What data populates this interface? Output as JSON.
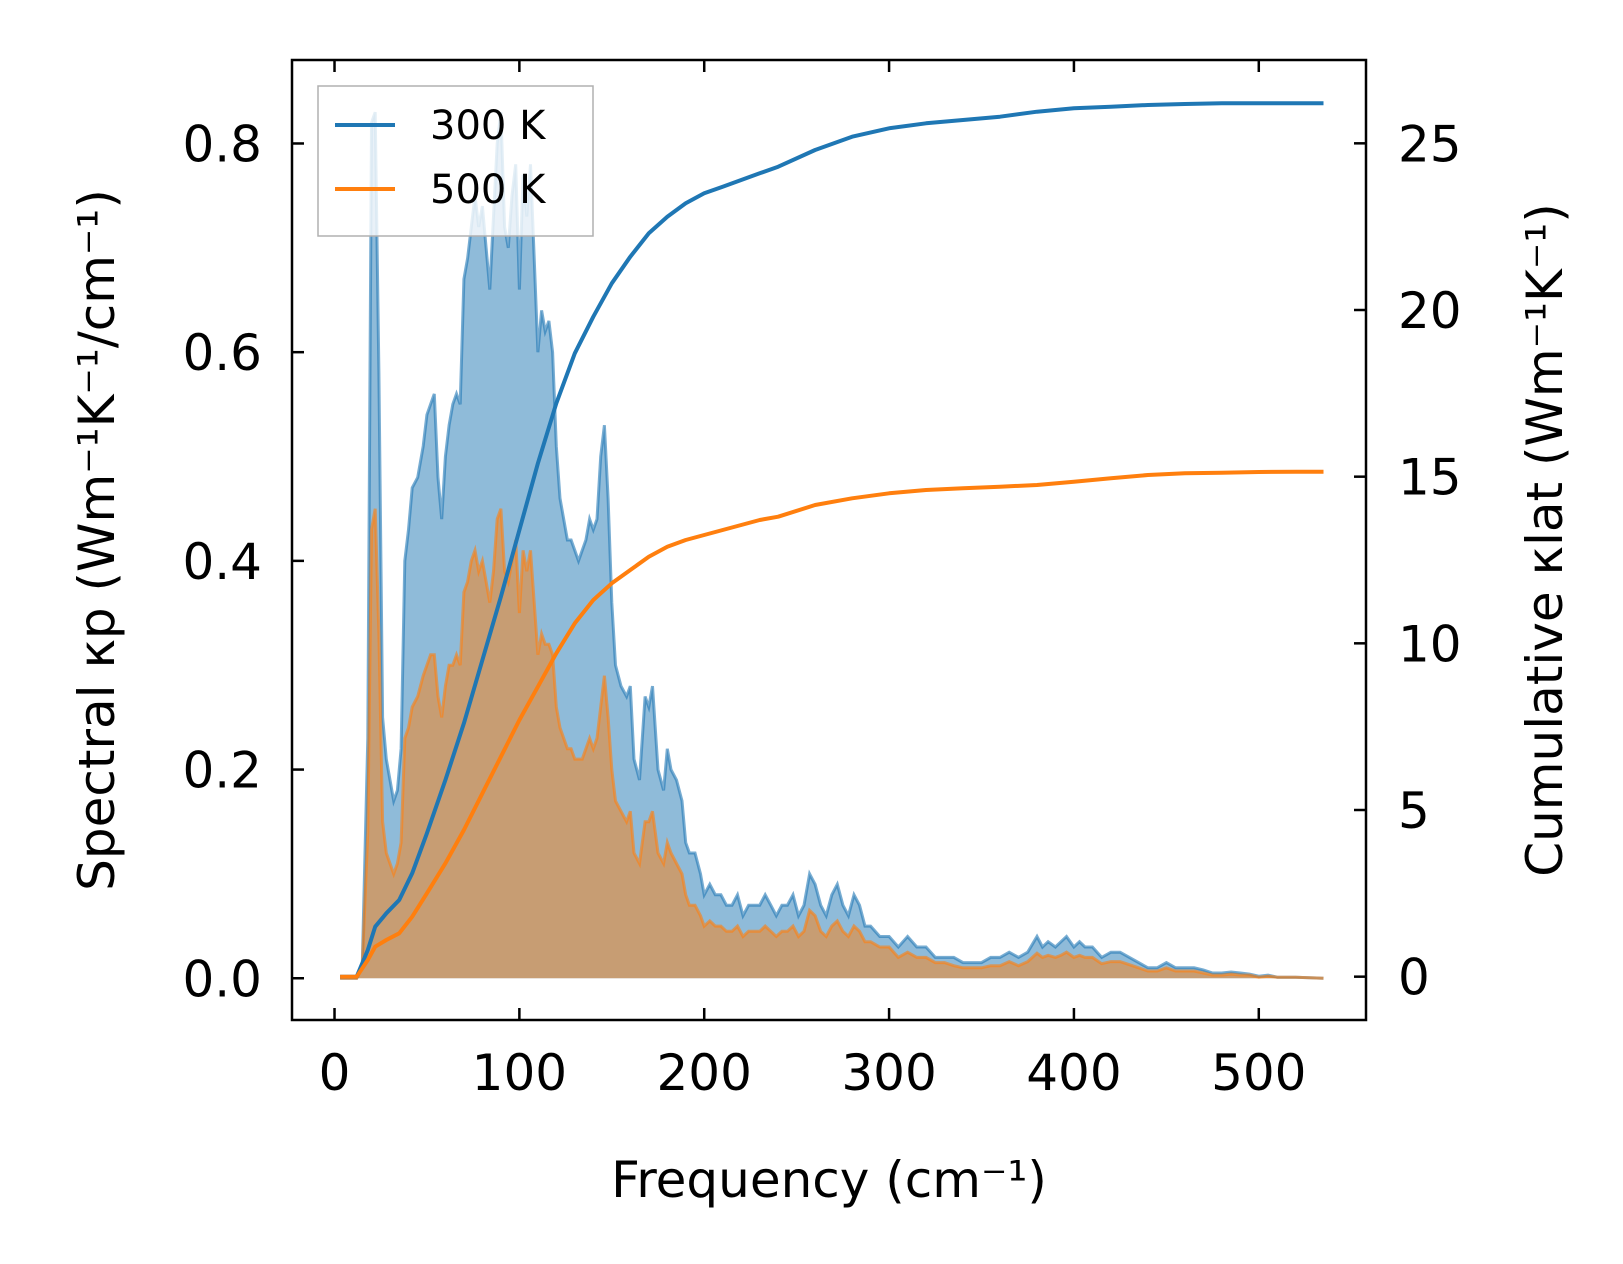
{
  "chart_data": {
    "type": "area",
    "xlabel": "Frequency (cm⁻¹)",
    "ylabel_left": "Spectral κp (Wm⁻¹K⁻¹/cm⁻¹)",
    "ylabel_right": "Cumulative κlat (Wm⁻¹K⁻¹)",
    "xlim": [
      -23,
      558
    ],
    "ylim_left": [
      -0.04,
      0.88
    ],
    "ylim_right": [
      -1.3,
      27.5
    ],
    "x_ticks": [
      0,
      100,
      200,
      300,
      400,
      500
    ],
    "y_ticks_left": [
      "0.0",
      "0.2",
      "0.4",
      "0.6",
      "0.8"
    ],
    "y_ticks_left_values": [
      0,
      0.2,
      0.4,
      0.6,
      0.8
    ],
    "y_ticks_right": [
      0,
      5,
      10,
      15,
      20,
      25
    ],
    "grid": false,
    "legend_position": "top-left",
    "series": [
      {
        "name": "300 K",
        "color": "#1f77b4",
        "fill_color": "#1f77b4",
        "spectral": {
          "x": [
            3,
            8,
            12,
            15,
            18,
            20,
            22,
            24,
            26,
            28,
            30,
            32,
            34,
            36,
            38,
            40,
            42,
            45,
            48,
            50,
            52,
            54,
            56,
            58,
            60,
            62,
            64,
            66,
            68,
            70,
            72,
            74,
            76,
            78,
            80,
            82,
            84,
            86,
            88,
            90,
            92,
            94,
            96,
            98,
            100,
            102,
            104,
            106,
            108,
            110,
            112,
            114,
            116,
            118,
            120,
            122,
            124,
            126,
            128,
            130,
            132,
            134,
            136,
            138,
            140,
            142,
            144,
            146,
            148,
            150,
            152,
            155,
            158,
            160,
            162,
            165,
            168,
            170,
            172,
            175,
            178,
            180,
            182,
            185,
            188,
            190,
            192,
            195,
            198,
            200,
            203,
            206,
            209,
            212,
            215,
            218,
            221,
            224,
            227,
            230,
            233,
            236,
            239,
            242,
            245,
            248,
            251,
            254,
            257,
            260,
            263,
            266,
            269,
            272,
            275,
            278,
            281,
            284,
            287,
            290,
            295,
            300,
            305,
            310,
            315,
            320,
            325,
            330,
            335,
            340,
            345,
            350,
            355,
            360,
            365,
            370,
            375,
            380,
            383,
            386,
            390,
            393,
            396,
            400,
            403,
            406,
            410,
            415,
            420,
            425,
            430,
            435,
            440,
            445,
            450,
            455,
            460,
            465,
            470,
            475,
            480,
            485,
            490,
            495,
            500,
            505,
            510,
            520,
            535
          ],
          "y": [
            0.0,
            0.0,
            0.0,
            0.01,
            0.23,
            0.82,
            0.83,
            0.58,
            0.25,
            0.21,
            0.19,
            0.17,
            0.18,
            0.22,
            0.4,
            0.43,
            0.47,
            0.48,
            0.51,
            0.54,
            0.55,
            0.56,
            0.48,
            0.44,
            0.5,
            0.53,
            0.55,
            0.56,
            0.55,
            0.67,
            0.69,
            0.72,
            0.75,
            0.72,
            0.74,
            0.7,
            0.66,
            0.73,
            0.8,
            0.83,
            0.72,
            0.7,
            0.75,
            0.78,
            0.66,
            0.77,
            0.73,
            0.78,
            0.69,
            0.6,
            0.64,
            0.62,
            0.63,
            0.6,
            0.51,
            0.46,
            0.44,
            0.42,
            0.42,
            0.41,
            0.4,
            0.41,
            0.42,
            0.44,
            0.43,
            0.44,
            0.5,
            0.53,
            0.46,
            0.36,
            0.3,
            0.28,
            0.27,
            0.28,
            0.21,
            0.19,
            0.27,
            0.26,
            0.28,
            0.2,
            0.18,
            0.22,
            0.2,
            0.19,
            0.17,
            0.13,
            0.12,
            0.12,
            0.1,
            0.08,
            0.09,
            0.08,
            0.08,
            0.07,
            0.07,
            0.08,
            0.06,
            0.07,
            0.07,
            0.07,
            0.08,
            0.07,
            0.06,
            0.07,
            0.07,
            0.08,
            0.06,
            0.07,
            0.1,
            0.09,
            0.07,
            0.06,
            0.08,
            0.09,
            0.07,
            0.06,
            0.08,
            0.07,
            0.05,
            0.05,
            0.04,
            0.04,
            0.03,
            0.04,
            0.03,
            0.03,
            0.02,
            0.02,
            0.02,
            0.015,
            0.015,
            0.015,
            0.02,
            0.02,
            0.025,
            0.02,
            0.025,
            0.04,
            0.03,
            0.035,
            0.03,
            0.035,
            0.04,
            0.03,
            0.035,
            0.03,
            0.03,
            0.02,
            0.025,
            0.025,
            0.02,
            0.015,
            0.01,
            0.01,
            0.015,
            0.01,
            0.01,
            0.01,
            0.008,
            0.005,
            0.005,
            0.006,
            0.005,
            0.004,
            0.002,
            0.003,
            0.001,
            0.001,
            0.0
          ]
        },
        "cumulative": {
          "x": [
            3,
            12,
            18,
            22,
            28,
            35,
            42,
            50,
            60,
            70,
            80,
            90,
            100,
            110,
            120,
            130,
            140,
            150,
            160,
            170,
            180,
            190,
            200,
            210,
            220,
            230,
            240,
            260,
            280,
            300,
            320,
            340,
            360,
            380,
            400,
            420,
            440,
            460,
            480,
            500,
            520,
            535
          ],
          "y": [
            0.0,
            0.0,
            0.8,
            1.5,
            1.9,
            2.3,
            3.1,
            4.3,
            5.9,
            7.6,
            9.5,
            11.4,
            13.4,
            15.4,
            17.2,
            18.7,
            19.8,
            20.8,
            21.6,
            22.3,
            22.8,
            23.2,
            23.5,
            23.7,
            23.9,
            24.1,
            24.3,
            24.8,
            25.2,
            25.45,
            25.6,
            25.7,
            25.8,
            25.95,
            26.05,
            26.1,
            26.15,
            26.18,
            26.2,
            26.2,
            26.2,
            26.2
          ]
        }
      },
      {
        "name": "500 K",
        "color": "#ff7f0e",
        "fill_color": "#ff7f0e",
        "spectral": {
          "x": [
            3,
            8,
            12,
            15,
            18,
            20,
            22,
            24,
            26,
            28,
            30,
            32,
            34,
            36,
            38,
            40,
            42,
            45,
            48,
            50,
            52,
            54,
            56,
            58,
            60,
            62,
            64,
            66,
            68,
            70,
            72,
            74,
            76,
            78,
            80,
            82,
            84,
            86,
            88,
            90,
            92,
            94,
            96,
            98,
            100,
            102,
            104,
            106,
            108,
            110,
            112,
            114,
            116,
            118,
            120,
            122,
            124,
            126,
            128,
            130,
            132,
            134,
            136,
            138,
            140,
            142,
            144,
            146,
            148,
            150,
            152,
            155,
            158,
            160,
            162,
            165,
            168,
            170,
            172,
            175,
            178,
            180,
            182,
            185,
            188,
            190,
            192,
            195,
            198,
            200,
            203,
            206,
            209,
            212,
            215,
            218,
            221,
            224,
            227,
            230,
            233,
            236,
            239,
            242,
            245,
            248,
            251,
            254,
            257,
            260,
            263,
            266,
            269,
            272,
            275,
            278,
            281,
            284,
            287,
            290,
            295,
            300,
            305,
            310,
            315,
            320,
            325,
            330,
            335,
            340,
            345,
            350,
            355,
            360,
            365,
            370,
            375,
            380,
            383,
            386,
            390,
            393,
            396,
            400,
            403,
            406,
            410,
            415,
            420,
            425,
            430,
            435,
            440,
            445,
            450,
            455,
            460,
            465,
            470,
            475,
            480,
            485,
            490,
            495,
            500,
            505,
            510,
            520,
            535
          ],
          "y": [
            0.0,
            0.0,
            0.0,
            0.01,
            0.14,
            0.43,
            0.45,
            0.33,
            0.15,
            0.12,
            0.11,
            0.1,
            0.11,
            0.13,
            0.23,
            0.24,
            0.26,
            0.27,
            0.29,
            0.3,
            0.31,
            0.31,
            0.27,
            0.25,
            0.28,
            0.3,
            0.3,
            0.31,
            0.3,
            0.37,
            0.38,
            0.4,
            0.41,
            0.39,
            0.4,
            0.38,
            0.36,
            0.39,
            0.44,
            0.45,
            0.39,
            0.38,
            0.4,
            0.42,
            0.35,
            0.41,
            0.39,
            0.41,
            0.36,
            0.31,
            0.33,
            0.32,
            0.32,
            0.31,
            0.26,
            0.24,
            0.23,
            0.22,
            0.22,
            0.21,
            0.21,
            0.21,
            0.22,
            0.23,
            0.22,
            0.23,
            0.26,
            0.29,
            0.25,
            0.2,
            0.17,
            0.16,
            0.15,
            0.16,
            0.12,
            0.11,
            0.15,
            0.15,
            0.16,
            0.12,
            0.11,
            0.13,
            0.12,
            0.11,
            0.1,
            0.08,
            0.07,
            0.07,
            0.06,
            0.05,
            0.055,
            0.05,
            0.05,
            0.045,
            0.045,
            0.05,
            0.04,
            0.045,
            0.045,
            0.045,
            0.05,
            0.045,
            0.04,
            0.045,
            0.045,
            0.05,
            0.04,
            0.045,
            0.065,
            0.06,
            0.045,
            0.04,
            0.05,
            0.055,
            0.045,
            0.04,
            0.05,
            0.045,
            0.035,
            0.035,
            0.03,
            0.03,
            0.02,
            0.025,
            0.02,
            0.02,
            0.015,
            0.015,
            0.012,
            0.01,
            0.01,
            0.01,
            0.012,
            0.012,
            0.016,
            0.012,
            0.016,
            0.024,
            0.02,
            0.022,
            0.02,
            0.022,
            0.025,
            0.02,
            0.022,
            0.02,
            0.02,
            0.014,
            0.016,
            0.016,
            0.013,
            0.01,
            0.007,
            0.007,
            0.01,
            0.007,
            0.007,
            0.007,
            0.005,
            0.003,
            0.003,
            0.004,
            0.003,
            0.003,
            0.001,
            0.002,
            0.001,
            0.001,
            0.0
          ]
        },
        "cumulative": {
          "x": [
            3,
            12,
            18,
            22,
            28,
            35,
            42,
            50,
            60,
            70,
            80,
            90,
            100,
            110,
            120,
            130,
            140,
            150,
            160,
            170,
            180,
            190,
            200,
            210,
            220,
            230,
            240,
            260,
            280,
            300,
            320,
            340,
            360,
            380,
            400,
            420,
            440,
            460,
            480,
            500,
            520,
            535
          ],
          "y": [
            0.0,
            0.0,
            0.5,
            0.9,
            1.1,
            1.3,
            1.8,
            2.5,
            3.4,
            4.4,
            5.5,
            6.6,
            7.7,
            8.7,
            9.7,
            10.6,
            11.3,
            11.8,
            12.2,
            12.6,
            12.9,
            13.1,
            13.25,
            13.4,
            13.55,
            13.7,
            13.8,
            14.15,
            14.35,
            14.5,
            14.6,
            14.65,
            14.7,
            14.75,
            14.85,
            14.95,
            15.05,
            15.1,
            15.12,
            15.14,
            15.15,
            15.15
          ]
        }
      }
    ]
  }
}
